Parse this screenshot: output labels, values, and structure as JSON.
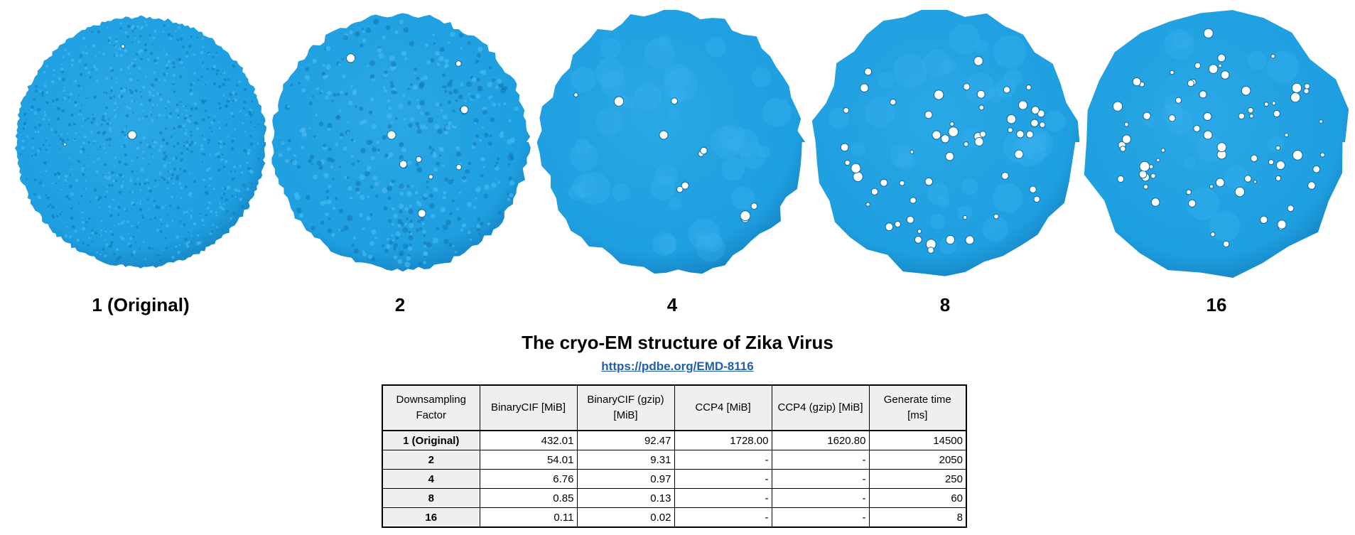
{
  "viruses": [
    {
      "label": "1 (Original)",
      "detail": "fine",
      "color": "#1e9fe0"
    },
    {
      "label": "2",
      "detail": "medium-fine",
      "color": "#1e9fe0"
    },
    {
      "label": "4",
      "detail": "medium",
      "color": "#1e9fe0"
    },
    {
      "label": "8",
      "detail": "coarse",
      "color": "#1e9fe0"
    },
    {
      "label": "16",
      "detail": "very-coarse",
      "color": "#1e9fe0"
    }
  ],
  "title": "The cryo-EM structure of Zika Virus",
  "link": "https://pdbe.org/EMD-8116",
  "table": {
    "headers": [
      [
        "Downsampling",
        "Factor"
      ],
      [
        "BinaryCIF [MiB]"
      ],
      [
        "BinaryCIF (gzip)",
        "[MiB]"
      ],
      [
        "CCP4 [MiB]"
      ],
      [
        "CCP4 (gzip) [MiB]"
      ],
      [
        "Generate time",
        "[ms]"
      ]
    ],
    "rows": [
      [
        "1 (Original)",
        "432.01",
        "92.47",
        "1728.00",
        "1620.80",
        "14500"
      ],
      [
        "2",
        "54.01",
        "9.31",
        "-",
        "-",
        "2050"
      ],
      [
        "4",
        "6.76",
        "0.97",
        "-",
        "-",
        "250"
      ],
      [
        "8",
        "0.85",
        "0.13",
        "-",
        "-",
        "60"
      ],
      [
        "16",
        "0.11",
        "0.02",
        "-",
        "-",
        "8"
      ]
    ]
  }
}
